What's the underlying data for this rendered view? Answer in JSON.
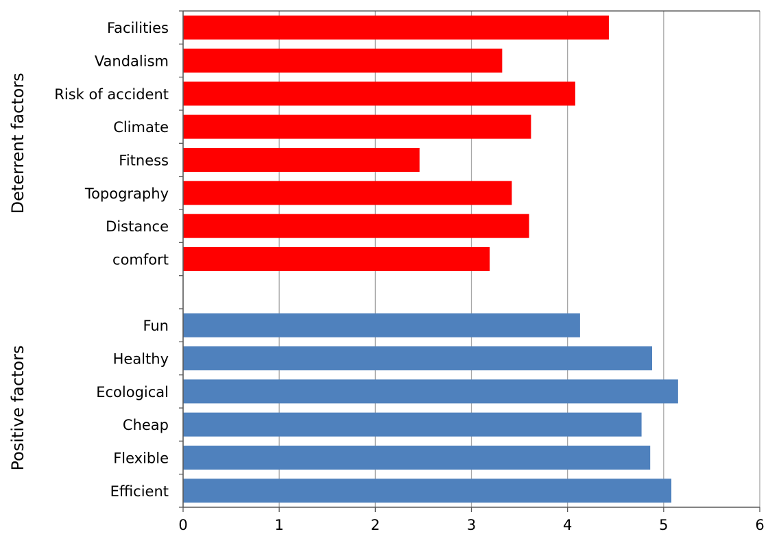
{
  "chart_data": {
    "type": "bar",
    "orientation": "horizontal",
    "categories": [
      "Facilities",
      "Vandalism",
      "Risk of accident",
      "Climate",
      "Fitness",
      "Topography",
      "Distance",
      "comfort",
      "",
      "Fun",
      "Healthy",
      "Ecological",
      "Cheap",
      "Flexible",
      "Efficient"
    ],
    "values": [
      4.43,
      3.32,
      4.08,
      3.62,
      2.46,
      3.42,
      3.6,
      3.19,
      null,
      4.13,
      4.88,
      5.15,
      4.77,
      4.86,
      5.08
    ],
    "colors": [
      "#ff0000",
      "#ff0000",
      "#ff0000",
      "#ff0000",
      "#ff0000",
      "#ff0000",
      "#ff0000",
      "#ff0000",
      "",
      "#4f81bd",
      "#4f81bd",
      "#4f81bd",
      "#4f81bd",
      "#4f81bd",
      "#4f81bd"
    ],
    "groups": [
      {
        "label": "Deterrent  factors",
        "color": "#ff0000"
      },
      {
        "label": "Positive  factors",
        "color": "#4f81bd"
      }
    ],
    "xlim": [
      0,
      6
    ],
    "xticks": [
      0,
      1,
      2,
      3,
      4,
      5,
      6
    ],
    "grid": true,
    "legend": "none"
  }
}
